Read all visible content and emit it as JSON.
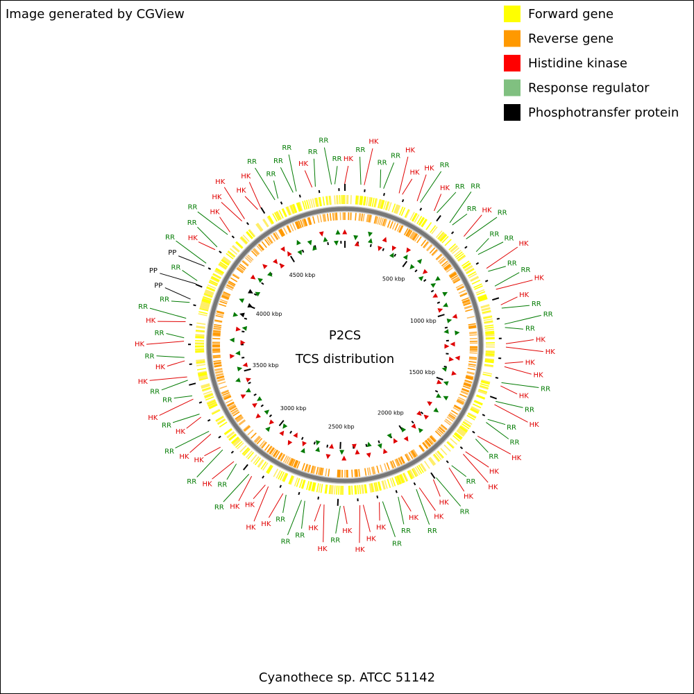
{
  "header": {
    "title": "Image generated by CGView"
  },
  "legend": [
    {
      "label": "Forward gene",
      "color": "#ffff00"
    },
    {
      "label": "Reverse gene",
      "color": "#ff9900"
    },
    {
      "label": "Histidine kinase",
      "color": "#ff0000"
    },
    {
      "label": "Response regulator",
      "color": "#80c080"
    },
    {
      "label": "Phosphotransfer protein",
      "color": "#000000"
    }
  ],
  "center": {
    "title": "P2CS",
    "subtitle": "TCS distribution"
  },
  "footer": {
    "organism": "Cyanothece sp. ATCC 51142"
  },
  "map": {
    "tick_labels": [
      "500 kbp",
      "1000 kbp",
      "1500 kbp",
      "2000 kbp",
      "2500 kbp",
      "3000 kbp",
      "3500 kbp",
      "4000 kbp",
      "4500 kbp"
    ],
    "label_colors": {
      "HK": "#e00000",
      "RR": "#007a00",
      "PP": "#000000"
    },
    "feature_labels": [
      "HK",
      "RR",
      "HK",
      "RR",
      "RR",
      "HK",
      "HK",
      "HK",
      "RR",
      "HK",
      "RR",
      "RR",
      "RR",
      "HK",
      "RR",
      "RR",
      "RR",
      "HK",
      "RR",
      "RR",
      "HK",
      "HK",
      "RR",
      "RR",
      "RR",
      "HK",
      "HK",
      "HK",
      "HK",
      "RR",
      "HK",
      "RR",
      "HK",
      "RR",
      "RR",
      "HK",
      "RR",
      "HK",
      "HK",
      "RR",
      "HK",
      "RR",
      "HK",
      "HK",
      "RR",
      "HK",
      "RR",
      "RR",
      "HK",
      "HK",
      "HK",
      "HK",
      "RR",
      "HK",
      "HK",
      "RR",
      "RR",
      "RR",
      "HK",
      "HK",
      "HK",
      "HK",
      "RR",
      "RR",
      "HK",
      "RR",
      "HK",
      "HK",
      "RR",
      "HK",
      "RR",
      "HK",
      "RR",
      "RR",
      "HK",
      "HK",
      "RR",
      "HK",
      "RR",
      "HK",
      "RR",
      "RR",
      "PP",
      "PP",
      "RR",
      "PP",
      "RR",
      "HK",
      "RR",
      "RR",
      "HK",
      "HK",
      "HK",
      "HK",
      "HK",
      "RR",
      "RR",
      "RR",
      "RR",
      "HK",
      "RR",
      "RR",
      "RR"
    ]
  }
}
